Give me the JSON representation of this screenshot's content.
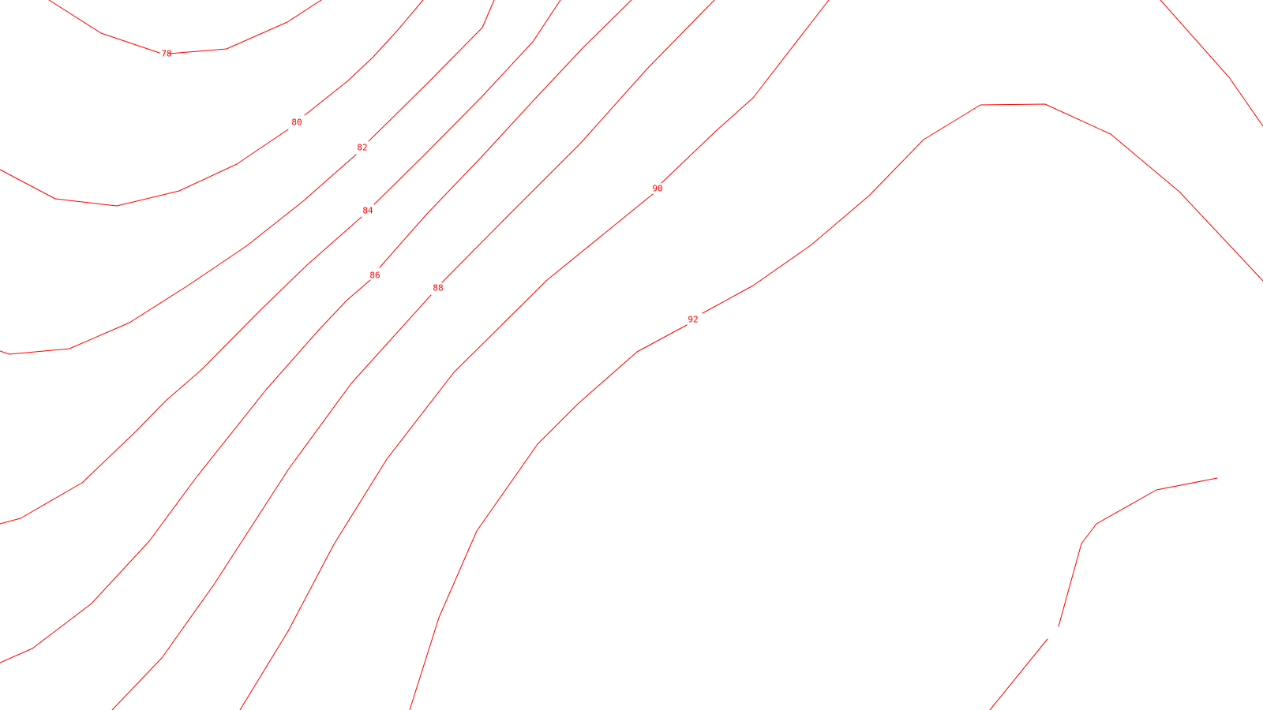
{
  "map": {
    "line_color": "#ff0000",
    "label_color": "#ff0000",
    "background_color": "#ffffff"
  },
  "contour_labels": {
    "c78": "78",
    "c80": "80",
    "c82": "82",
    "c84": "84",
    "c86": "86",
    "c88": "88",
    "c90": "90",
    "c92": "92"
  }
}
